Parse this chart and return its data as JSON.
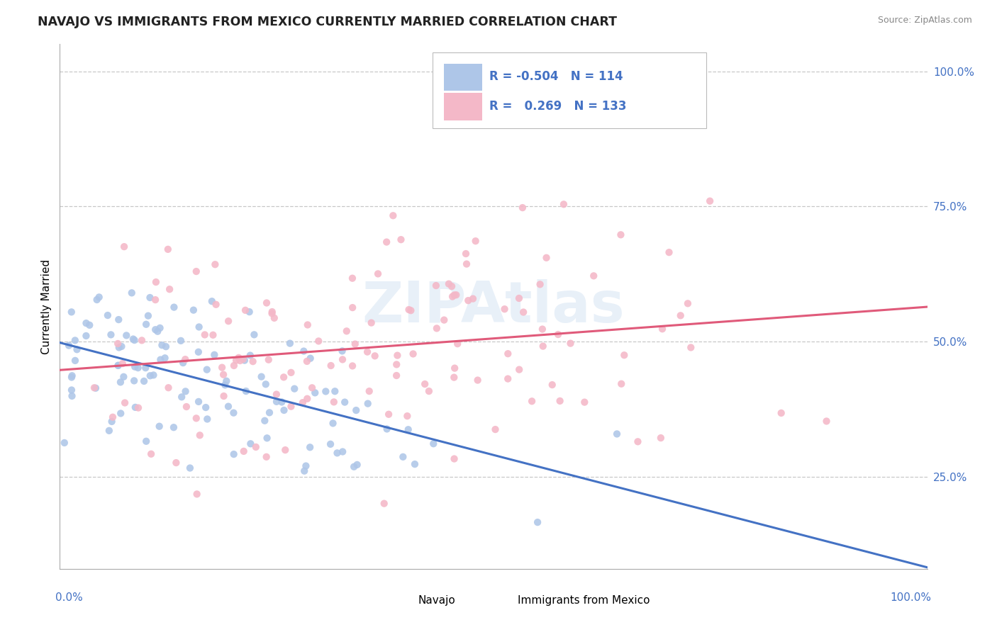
{
  "title": "NAVAJO VS IMMIGRANTS FROM MEXICO CURRENTLY MARRIED CORRELATION CHART",
  "source": "Source: ZipAtlas.com",
  "ylabel": "Currently Married",
  "navajo_R": "-0.504",
  "navajo_N": "114",
  "mexico_R": "0.269",
  "mexico_N": "133",
  "navajo_color": "#aec6e8",
  "mexico_color": "#f4b8c8",
  "navajo_line_color": "#4472c4",
  "mexico_line_color": "#e05a7a",
  "background_color": "#ffffff",
  "grid_color": "#c8c8c8",
  "watermark": "ZIPAtlas",
  "xlim": [
    0.0,
    1.0
  ],
  "ylim": [
    0.08,
    1.05
  ],
  "yticks": [
    0.25,
    0.5,
    0.75,
    1.0
  ],
  "ytick_labels": [
    "25.0%",
    "50.0%",
    "75.0%",
    "100.0%"
  ],
  "title_color": "#222222",
  "source_color": "#888888",
  "tick_label_color": "#4472c4",
  "axis_label_color": "#000000"
}
